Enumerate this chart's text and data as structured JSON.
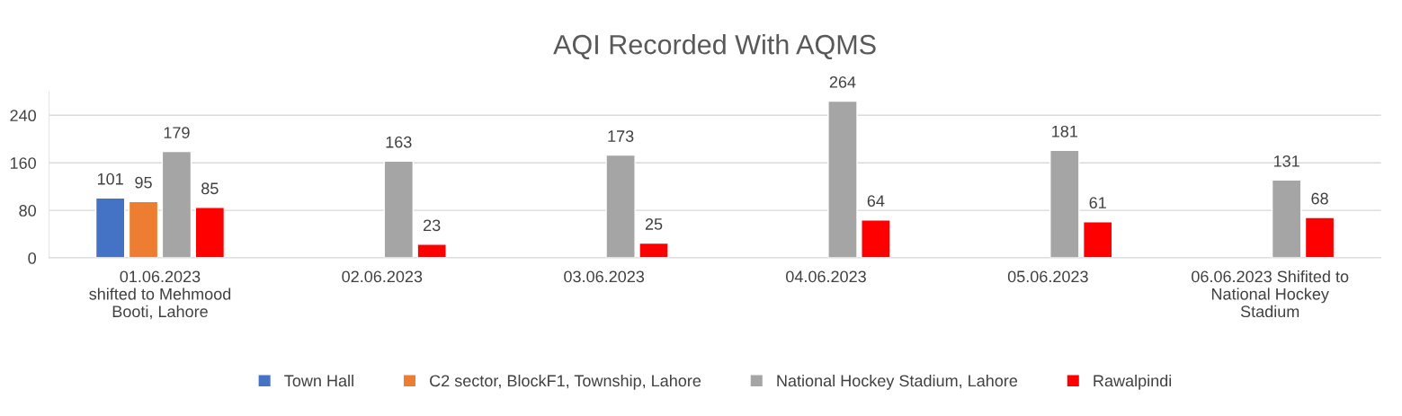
{
  "chart_data": {
    "type": "bar",
    "title": "AQI Recorded With AQMS",
    "categories": [
      "01.06.2023\nshifted to Mehmood\nBooti, Lahore",
      "02.06.2023",
      "03.06.2023",
      "04.06.2023",
      "05.06.2023",
      "06.06.2023 Shifited to\nNational Hockey\nStadium"
    ],
    "series": [
      {
        "name": "Town Hall",
        "color": "#4472c4",
        "values": [
          101,
          null,
          null,
          null,
          null,
          null
        ]
      },
      {
        "name": "C2 sector, BlockF1, Township, Lahore",
        "color": "#ed7d31",
        "values": [
          95,
          null,
          null,
          null,
          null,
          null
        ]
      },
      {
        "name": "National Hockey Stadium, Lahore",
        "color": "#a5a5a5",
        "values": [
          179,
          163,
          173,
          264,
          181,
          131
        ]
      },
      {
        "name": "Rawalpindi",
        "color": "#ff0000",
        "values": [
          85,
          23,
          25,
          64,
          61,
          68
        ]
      }
    ],
    "ylim": [
      0,
      280
    ],
    "yticks": [
      0,
      80,
      160,
      240
    ],
    "grid": "y",
    "legend": "bottom",
    "data_labels": true
  }
}
